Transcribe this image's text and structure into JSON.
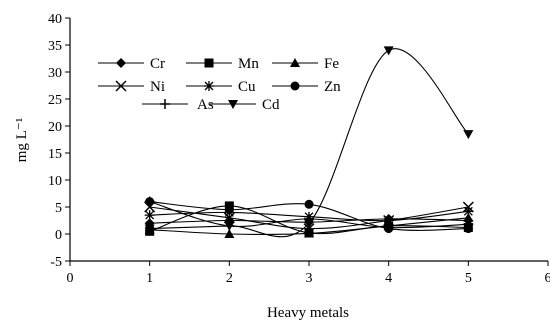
{
  "chart_data": {
    "type": "line",
    "title": "",
    "xlabel": "Heavy metals",
    "ylabel": "mg L⁻¹",
    "xlim": [
      0,
      6
    ],
    "ylim": [
      -5,
      40
    ],
    "xticks": [
      0,
      1,
      2,
      3,
      4,
      5,
      6
    ],
    "yticks": [
      -5,
      0,
      5,
      10,
      15,
      20,
      25,
      30,
      35,
      40
    ],
    "grid": false,
    "legend_position": "top-left",
    "smooth": true,
    "series": [
      {
        "name": "Cr",
        "marker": "diamond",
        "x": [
          1,
          2,
          3,
          4,
          5
        ],
        "y": [
          2.0,
          2.5,
          2.2,
          2.8,
          2.5
        ]
      },
      {
        "name": "Mn",
        "marker": "square",
        "x": [
          1,
          2,
          3,
          4,
          5
        ],
        "y": [
          0.5,
          5.2,
          0.2,
          1.5,
          1.2
        ]
      },
      {
        "name": "Fe",
        "marker": "triangle",
        "x": [
          1,
          2,
          3,
          4,
          5
        ],
        "y": [
          0.8,
          0.0,
          0.1,
          1.5,
          3.0
        ]
      },
      {
        "name": "Ni",
        "marker": "x",
        "x": [
          1,
          2,
          3,
          4,
          5
        ],
        "y": [
          5.0,
          3.0,
          1.0,
          2.5,
          5.0
        ]
      },
      {
        "name": "Cu",
        "marker": "asterisk",
        "x": [
          1,
          2,
          3,
          4,
          5
        ],
        "y": [
          3.5,
          4.0,
          3.2,
          2.5,
          4.2
        ]
      },
      {
        "name": "Zn",
        "marker": "circle",
        "x": [
          1,
          2,
          3,
          4,
          5
        ],
        "y": [
          6.0,
          4.5,
          5.5,
          1.0,
          1.0
        ]
      },
      {
        "name": "As",
        "marker": "plus",
        "x": [
          1,
          2,
          3,
          4,
          5
        ],
        "y": [
          6.0,
          1.5,
          2.8,
          1.2,
          1.8
        ]
      },
      {
        "name": "Cd",
        "marker": "triangle-down",
        "x": [
          1,
          2,
          3,
          4,
          5
        ],
        "y": [
          1.0,
          1.5,
          2.0,
          34.0,
          18.5
        ]
      }
    ]
  }
}
